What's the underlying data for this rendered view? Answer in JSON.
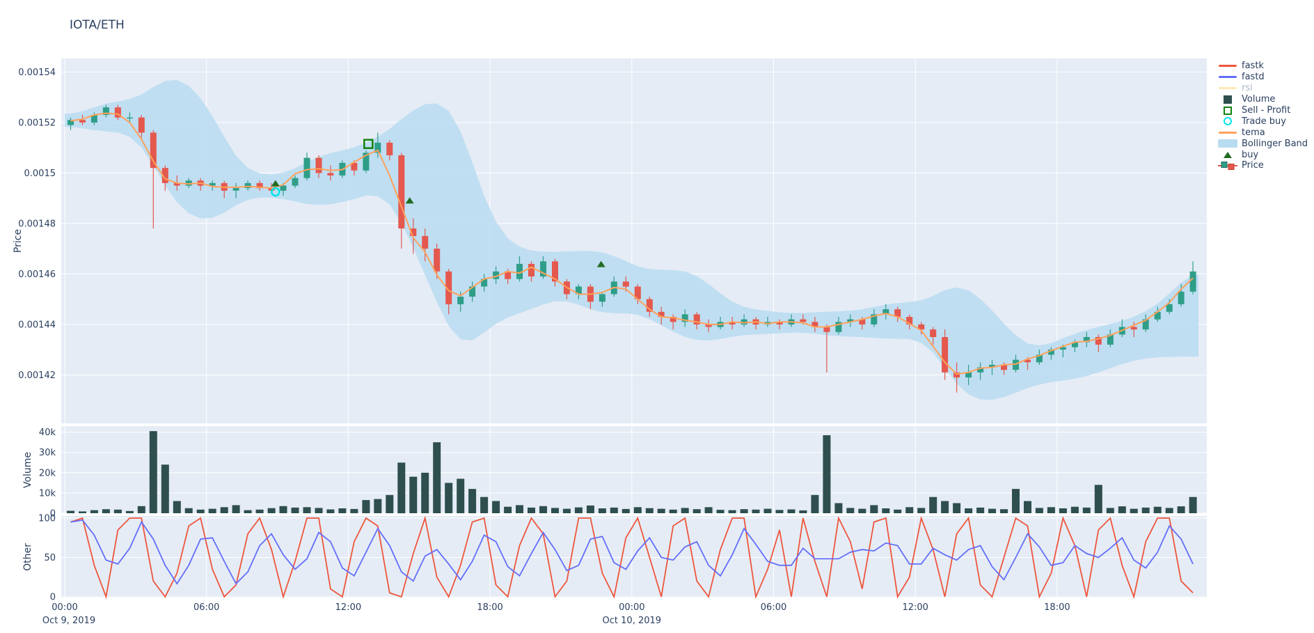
{
  "title": "IOTA/ETH",
  "colors": {
    "background": "#ffffff",
    "panel_bg": "#E5ECF6",
    "grid": "#ffffff",
    "text": "#2a3f5f",
    "text_muted": "#a9b6c9",
    "candle_up": "#2E9E88",
    "candle_down": "#E4584E",
    "volume_bar": "#2F4F4F",
    "fastk": "#EF553B",
    "fastd": "#636EFA",
    "rsi": "#FECB52",
    "rsi_faded": "#FDE8B2",
    "tema": "#FFA15A",
    "bollinger": "#B9DCF1",
    "sell_profit": "#12820F",
    "trade_buy": "#00E5E8",
    "buy": "#226B22"
  },
  "legend": {
    "items": [
      {
        "label": "fastk",
        "type": "line",
        "color": "#EF553B",
        "hidden": false
      },
      {
        "label": "fastd",
        "type": "line",
        "color": "#636EFA",
        "hidden": false
      },
      {
        "label": "rsi",
        "type": "line",
        "color": "#FDE8B2",
        "hidden": true
      },
      {
        "label": "Volume",
        "type": "square",
        "color": "#2F4F4F",
        "hidden": false
      },
      {
        "label": "Sell - Profit",
        "type": "square-open",
        "color": "#12820F",
        "hidden": false
      },
      {
        "label": "Trade buy",
        "type": "circle-open",
        "color": "#00E5E8",
        "hidden": false
      },
      {
        "label": "tema",
        "type": "line",
        "color": "#FFA15A",
        "hidden": false
      },
      {
        "label": "Bollinger Band",
        "type": "band",
        "color": "#B9DCF1",
        "hidden": false
      },
      {
        "label": "buy",
        "type": "triangle-up",
        "color": "#226B22",
        "hidden": false
      },
      {
        "label": "Price",
        "type": "candlestick",
        "color": "#2E9E88",
        "color2": "#E4584E",
        "hidden": false
      }
    ]
  },
  "axes": {
    "price": {
      "title": "Price",
      "tick_labels": [
        "0.00154",
        "0.00152",
        "0.0015",
        "0.00148",
        "0.00146",
        "0.00144",
        "0.00142"
      ],
      "tick_values": [
        0.00154,
        0.00152,
        0.0015,
        0.00148,
        0.00146,
        0.00144,
        0.00142
      ]
    },
    "volume": {
      "title": "Volume",
      "tick_labels": [
        "40k",
        "30k",
        "20k",
        "10k",
        "0"
      ],
      "tick_values": [
        40000,
        30000,
        20000,
        10000,
        0
      ]
    },
    "other": {
      "title": "Other",
      "tick_labels": [
        "100",
        "50",
        "0"
      ],
      "tick_values": [
        100,
        50,
        0
      ]
    },
    "x": {
      "tick_labels": [
        "00:00",
        "06:00",
        "12:00",
        "18:00",
        "00:00",
        "06:00",
        "12:00",
        "18:00"
      ],
      "tick_hours": [
        0,
        6,
        12,
        18,
        24,
        30,
        36,
        42
      ],
      "date_labels": [
        {
          "text": "Oct 9, 2019",
          "hour": 0
        },
        {
          "text": "Oct 10, 2019",
          "hour": 24
        }
      ]
    }
  },
  "chart_data": {
    "type": "candlestick",
    "pair": "IOTA/ETH",
    "start": "Oct 9, 2019 00:00",
    "hours_span": 48,
    "sample_interval_minutes": 30,
    "price_unit": 1e-06,
    "price_view_range": [
      0.0014,
      0.001545
    ],
    "ohlc": {
      "open": [
        1519,
        1521,
        1520,
        1523,
        1526,
        1522,
        1522,
        1516,
        1502,
        1496,
        1495,
        1497,
        1495,
        1496,
        1493,
        1494,
        1496,
        1494,
        1493,
        1495,
        1498,
        1506,
        1500,
        1499,
        1504,
        1501,
        1508,
        1512,
        1507,
        1478,
        1475,
        1470,
        1461,
        1448,
        1451,
        1455,
        1458,
        1461,
        1458,
        1464,
        1459,
        1465,
        1457,
        1452,
        1455,
        1449,
        1452,
        1457,
        1455,
        1450,
        1445,
        1443,
        1441,
        1444,
        1440,
        1439,
        1441,
        1440,
        1442,
        1440,
        1441,
        1440,
        1442,
        1441,
        1439,
        1437,
        1441,
        1442,
        1440,
        1444,
        1446,
        1443,
        1440,
        1438,
        1435,
        1421,
        1419,
        1421,
        1423,
        1424,
        1422,
        1426,
        1425,
        1428,
        1430,
        1431,
        1433,
        1435,
        1432,
        1436,
        1439,
        1438,
        1442,
        1445,
        1448,
        1453
      ],
      "high": [
        1522,
        1523,
        1524,
        1527,
        1527,
        1524,
        1523,
        1517,
        1503,
        1499,
        1498,
        1498,
        1497,
        1497,
        1496,
        1497,
        1497,
        1496,
        1496,
        1499,
        1508,
        1507,
        1503,
        1505,
        1505,
        1509,
        1516,
        1513,
        1508,
        1482,
        1478,
        1472,
        1462,
        1453,
        1457,
        1460,
        1463,
        1462,
        1467,
        1465,
        1467,
        1466,
        1458,
        1456,
        1456,
        1453,
        1459,
        1459,
        1456,
        1451,
        1447,
        1444,
        1446,
        1445,
        1442,
        1443,
        1443,
        1444,
        1443,
        1443,
        1442,
        1444,
        1444,
        1443,
        1440,
        1443,
        1444,
        1443,
        1446,
        1448,
        1447,
        1444,
        1441,
        1439,
        1438,
        1425,
        1424,
        1425,
        1426,
        1425,
        1428,
        1427,
        1430,
        1431,
        1432,
        1434,
        1437,
        1436,
        1438,
        1442,
        1441,
        1444,
        1447,
        1450,
        1456,
        1465
      ],
      "low": [
        1517,
        1519,
        1519,
        1522,
        1521,
        1520,
        1514,
        1478,
        1493,
        1493,
        1494,
        1493,
        1493,
        1490,
        1490,
        1493,
        1493,
        1492,
        1491,
        1494,
        1497,
        1498,
        1497,
        1498,
        1499,
        1500,
        1506,
        1505,
        1470,
        1468,
        1465,
        1458,
        1444,
        1445,
        1449,
        1453,
        1456,
        1456,
        1457,
        1457,
        1458,
        1455,
        1450,
        1450,
        1446,
        1447,
        1451,
        1453,
        1448,
        1443,
        1440,
        1438,
        1439,
        1438,
        1437,
        1438,
        1438,
        1439,
        1438,
        1439,
        1438,
        1439,
        1440,
        1437,
        1421,
        1436,
        1439,
        1438,
        1439,
        1442,
        1441,
        1438,
        1436,
        1432,
        1418,
        1413,
        1416,
        1418,
        1420,
        1420,
        1421,
        1422,
        1424,
        1426,
        1427,
        1429,
        1431,
        1429,
        1431,
        1435,
        1435,
        1437,
        1441,
        1444,
        1447,
        1452
      ],
      "close": [
        1521,
        1520,
        1523,
        1526,
        1522,
        1522,
        1516,
        1502,
        1496,
        1495,
        1497,
        1495,
        1496,
        1493,
        1494,
        1496,
        1494,
        1493,
        1495,
        1498,
        1506,
        1500,
        1499,
        1504,
        1501,
        1508,
        1512,
        1507,
        1478,
        1475,
        1470,
        1461,
        1448,
        1451,
        1455,
        1458,
        1461,
        1458,
        1464,
        1459,
        1465,
        1457,
        1452,
        1455,
        1449,
        1452,
        1457,
        1455,
        1450,
        1445,
        1443,
        1441,
        1444,
        1440,
        1439,
        1441,
        1440,
        1442,
        1440,
        1441,
        1440,
        1442,
        1441,
        1439,
        1437,
        1441,
        1442,
        1440,
        1444,
        1446,
        1443,
        1440,
        1438,
        1435,
        1421,
        1419,
        1421,
        1423,
        1424,
        1422,
        1426,
        1425,
        1428,
        1430,
        1431,
        1433,
        1435,
        1432,
        1436,
        1439,
        1438,
        1442,
        1445,
        1448,
        1453,
        1461
      ]
    },
    "volume": [
      1200,
      900,
      1500,
      2000,
      1800,
      1100,
      3500,
      40500,
      24000,
      6000,
      2500,
      1800,
      2200,
      3000,
      4000,
      1500,
      1800,
      2500,
      3500,
      2800,
      3000,
      2600,
      1900,
      2400,
      2100,
      6500,
      7000,
      9000,
      25000,
      18000,
      20000,
      35000,
      15000,
      17000,
      12000,
      8000,
      6000,
      3200,
      4000,
      2800,
      3500,
      2600,
      2200,
      2900,
      3800,
      2400,
      2800,
      2100,
      3000,
      2500,
      2200,
      1800,
      2600,
      2000,
      3000,
      1700,
      1500,
      2000,
      1800,
      2200,
      1600,
      1900,
      1400,
      9000,
      38500,
      5000,
      2600,
      2200,
      4000,
      2400,
      1800,
      3000,
      2600,
      8000,
      6000,
      5000,
      2400,
      2800,
      2200,
      2000,
      12000,
      6000,
      2600,
      3000,
      2400,
      3200,
      2800,
      14000,
      2600,
      3400,
      2200,
      2800,
      3200,
      2600,
      3400,
      8000
    ],
    "oscillators": {
      "range": [
        0,
        100
      ],
      "fastk": [
        95,
        100,
        40,
        0,
        85,
        100,
        100,
        20,
        0,
        30,
        90,
        100,
        35,
        0,
        15,
        80,
        100,
        60,
        0,
        45,
        100,
        100,
        10,
        0,
        70,
        100,
        90,
        5,
        0,
        55,
        100,
        25,
        0,
        40,
        95,
        100,
        15,
        0,
        65,
        100,
        80,
        0,
        20,
        100,
        100,
        30,
        0,
        75,
        100,
        50,
        0,
        90,
        100,
        20,
        0,
        60,
        100,
        100,
        0,
        35,
        85,
        0,
        100,
        45,
        0,
        100,
        70,
        10,
        95,
        100,
        0,
        25,
        100,
        60,
        0,
        80,
        100,
        15,
        0,
        50,
        100,
        90,
        0,
        30,
        100,
        65,
        0,
        85,
        100,
        40,
        0,
        70,
        100,
        100,
        20,
        5
      ],
      "fastd_derivation": "SMA3(fastk)"
    },
    "overlays": {
      "tema_derivation": "SMA3(close)",
      "bollinger_derivation": "SMA8(close) +/- 2*stddev"
    },
    "markers": {
      "buy": [
        {
          "hour": 8.92,
          "price": 0.0014958
        },
        {
          "hour": 14.6,
          "price": 0.001489
        },
        {
          "hour": 22.7,
          "price": 0.0014638
        }
      ],
      "trade_buy": [
        {
          "hour": 8.92,
          "price": 0.0014925
        }
      ],
      "sell_profit": [
        {
          "hour": 12.85,
          "price": 0.0015115
        }
      ]
    },
    "hidden_series": [
      "rsi"
    ]
  }
}
